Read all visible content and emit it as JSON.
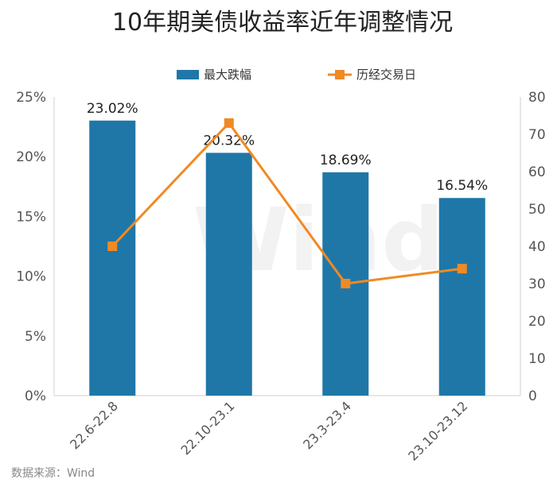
{
  "chart_data": {
    "type": "bar",
    "title": "10年期美债收益率近年调整情况",
    "categories": [
      "22.6-22.8",
      "22.10-23.1",
      "23.3-23.4",
      "23.10-23.12"
    ],
    "series": [
      {
        "name": "最大跌幅",
        "type": "bar",
        "axis": "left",
        "values": [
          23.02,
          20.32,
          18.69,
          16.54
        ],
        "labels": [
          "23.02%",
          "20.32%",
          "18.69%",
          "16.54%"
        ],
        "color": "#1f77a8"
      },
      {
        "name": "历经交易日",
        "type": "line",
        "axis": "right",
        "values": [
          40,
          73,
          30,
          34
        ],
        "color": "#f08a24"
      }
    ],
    "y_left": {
      "min": 0,
      "max": 25,
      "ticks": [
        "0%",
        "5%",
        "10%",
        "15%",
        "20%",
        "25%"
      ]
    },
    "y_right": {
      "min": 0,
      "max": 80,
      "ticks": [
        "0",
        "10",
        "20",
        "30",
        "40",
        "50",
        "60",
        "70",
        "80"
      ]
    },
    "legend_position": "top-center",
    "grid": false
  },
  "watermark": "Wind",
  "source": "数据来源：Wind"
}
